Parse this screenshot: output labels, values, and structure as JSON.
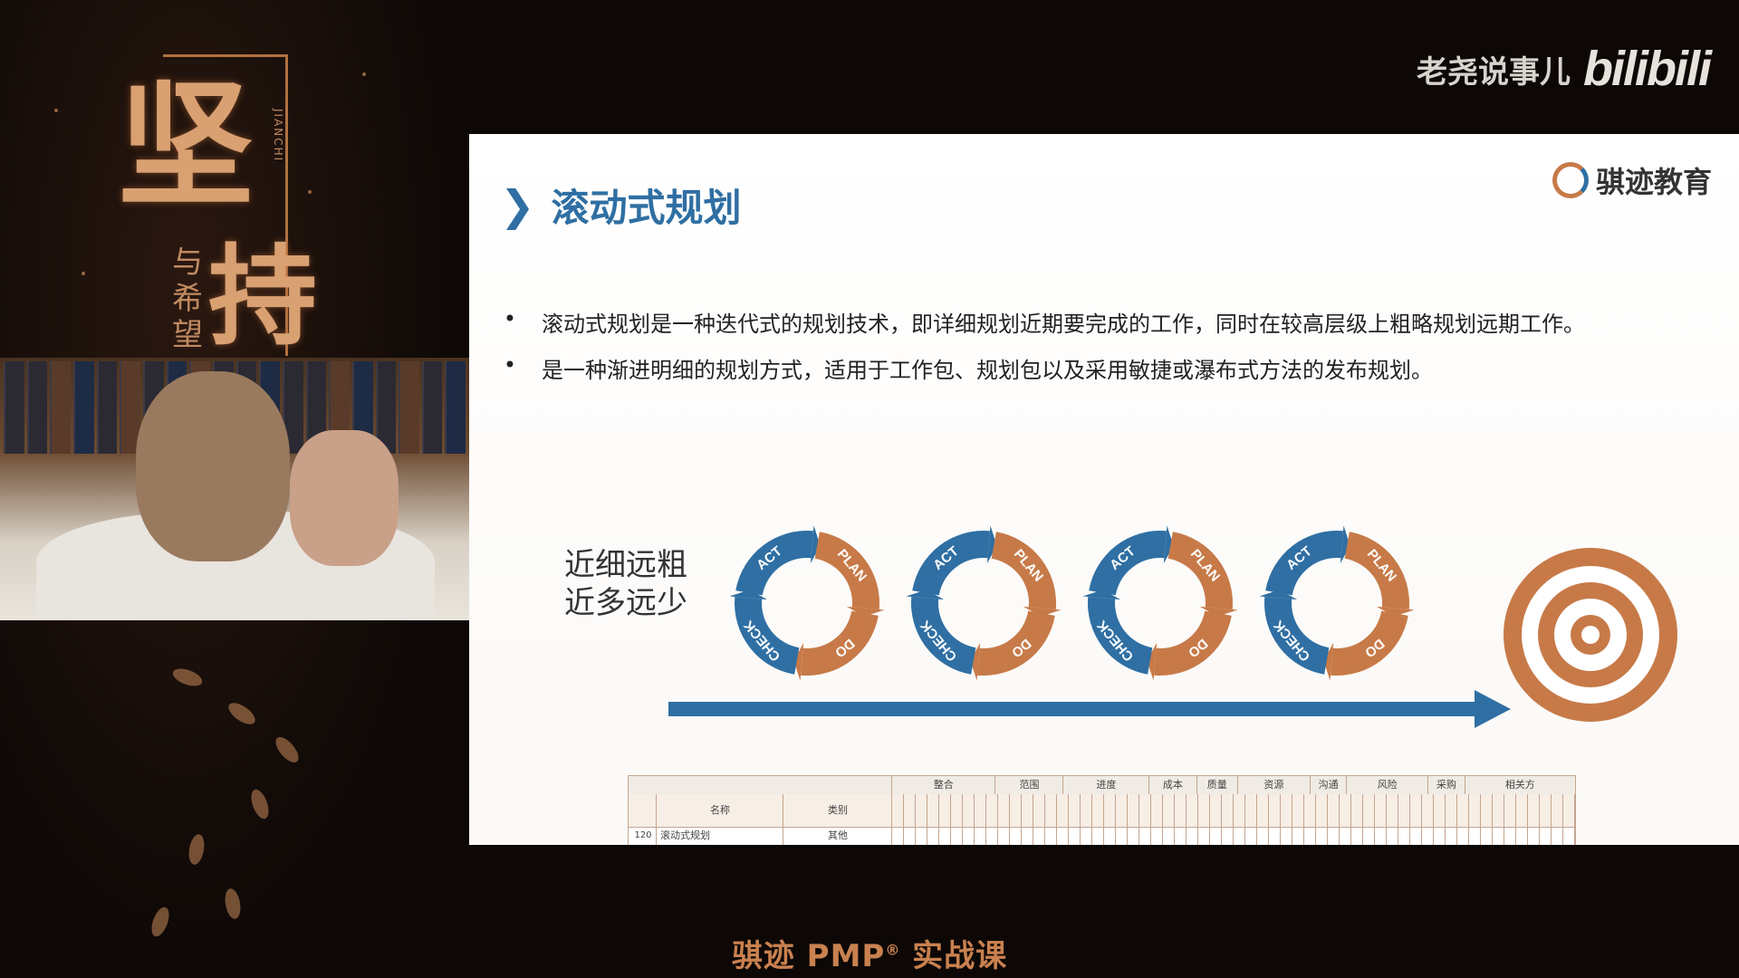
{
  "brand": {
    "name": "老尧说事儿",
    "logo": "bilibili"
  },
  "poster": {
    "big_1": "坚",
    "big_2": "持",
    "sub": "与希望",
    "pinyin": "JIANCHI"
  },
  "slide": {
    "title": "滚动式规划",
    "org_name": "骐迹教育",
    "bullets": [
      "滚动式规划是一种迭代式的规划技术，即详细规划近期要完成的工作，同时在较高层级上粗略规划远期工作。",
      "是一种渐进明细的规划方式，适用于工作包、规划包以及采用敏捷或瀑布式方法的发布规划。"
    ],
    "motto_line_1": "近细远粗",
    "motto_line_2": "近多远少",
    "cycle_labels": [
      "ACT",
      "PLAN",
      "DO",
      "CHECK"
    ],
    "colors": {
      "blue": "#2f6fa3",
      "orange": "#c77a48"
    }
  },
  "sheet": {
    "groups": [
      "整合",
      "范围",
      "进度",
      "成本",
      "质量",
      "资源",
      "沟通",
      "风险",
      "采购",
      "相关方"
    ],
    "header_name": "名称",
    "header_type": "类别",
    "row": {
      "no": "120",
      "name": "滚动式规划",
      "type": "其他"
    }
  },
  "caption": {
    "text": "骐迹 PMP",
    "mark": "®",
    "suffix": " 实战课"
  }
}
